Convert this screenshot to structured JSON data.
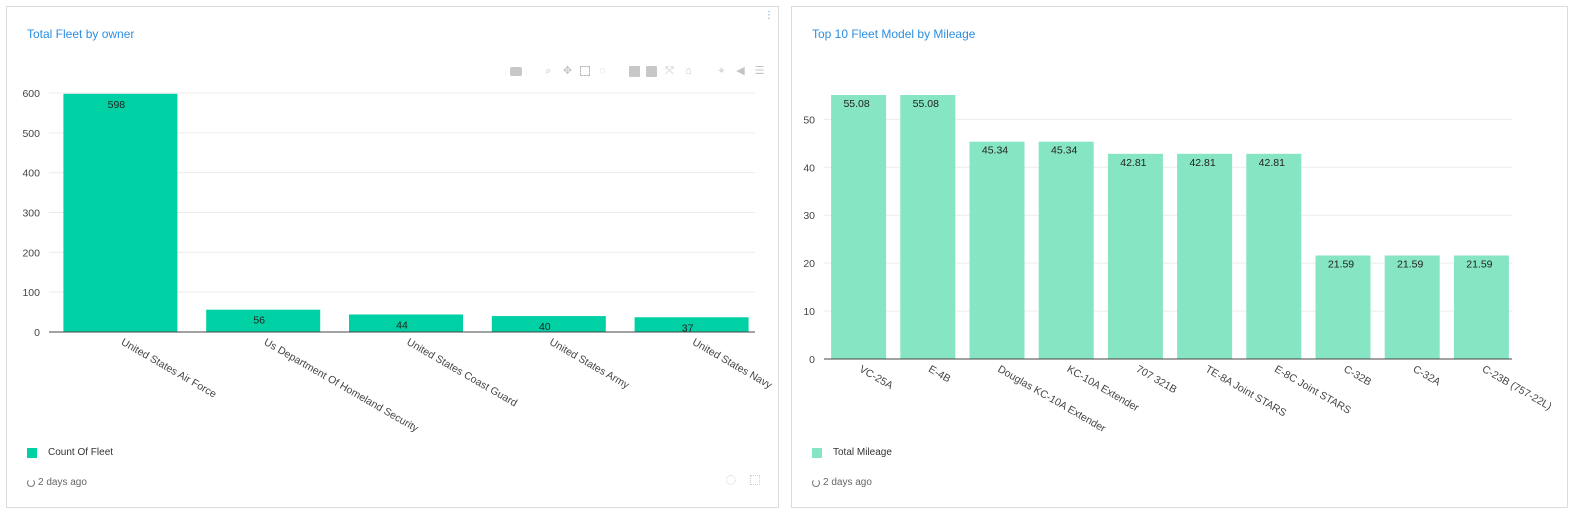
{
  "panels": [
    {
      "title": "Total Fleet by owner",
      "legend_label": "Count Of Fleet",
      "updated": "2 days ago"
    },
    {
      "title": "Top 10 Fleet Model by Mileage",
      "legend_label": "Total Mileage",
      "updated": "2 days ago"
    }
  ],
  "modebar_icons": [
    "camera-icon",
    "zoom-icon",
    "pan-icon",
    "box-select-icon",
    "lasso-icon",
    "zoom-in-icon",
    "zoom-out-icon",
    "autoscale-icon",
    "home-icon",
    "spike-lines-icon",
    "hover-closest-icon",
    "hover-compare-icon"
  ],
  "chart_data": [
    {
      "type": "bar",
      "title": "Total Fleet by owner",
      "categories": [
        "United States Air Force",
        "Us Department Of Homeland Security",
        "United States Coast Guard",
        "United States Army",
        "United States Navy"
      ],
      "series": [
        {
          "name": "Count Of Fleet",
          "values": [
            598,
            56,
            44,
            40,
            37
          ],
          "color": "#00d1a4"
        }
      ],
      "data_labels": [
        "598",
        "56",
        "44",
        "40",
        "37"
      ],
      "yticks": [
        "0",
        "100",
        "200",
        "300",
        "400",
        "500",
        "600"
      ],
      "ylim": [
        0,
        600
      ],
      "xlabel": "",
      "ylabel": "",
      "grid": true,
      "legend": "bottom-left"
    },
    {
      "type": "bar",
      "title": "Top 10 Fleet Model by Mileage",
      "categories": [
        "VC-25A",
        "E-4B",
        "Douglas KC-10A Extender",
        "KC-10A Extender",
        "707 321B",
        "TE-8A Joint STARS",
        "E-8C Joint STARS",
        "C-32B",
        "C-32A",
        "C-23B (757-22L)"
      ],
      "series": [
        {
          "name": "Total Mileage",
          "values": [
            55.08,
            55.08,
            45.34,
            45.34,
            42.81,
            42.81,
            42.81,
            21.59,
            21.59,
            21.59
          ],
          "color": "#86e5c3"
        }
      ],
      "data_labels": [
        "55.08",
        "55.08",
        "45.34",
        "45.34",
        "42.81",
        "42.81",
        "42.81",
        "21.59",
        "21.59",
        "21.59"
      ],
      "yticks": [
        "0",
        "10",
        "20",
        "30",
        "40",
        "50"
      ],
      "ylim": [
        0,
        55.08
      ],
      "xlabel": "",
      "ylabel": "",
      "grid": true,
      "legend": "bottom-left"
    }
  ]
}
